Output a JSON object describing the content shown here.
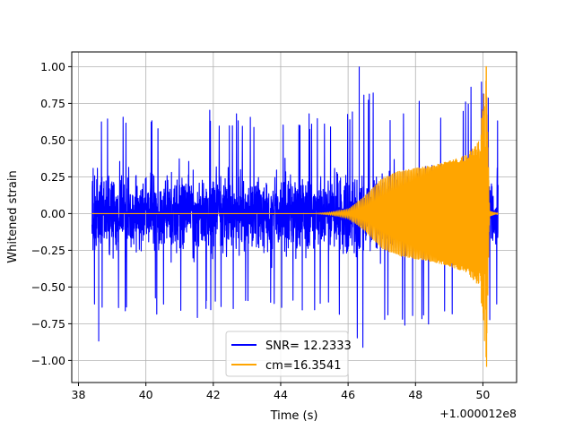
{
  "chart_data": {
    "type": "line",
    "title": "",
    "xlabel": "Time (s)",
    "ylabel": "Whitened strain",
    "x_offset_label": "+1.000012e8",
    "xlim": [
      37.8,
      51.0
    ],
    "ylim": [
      -1.15,
      1.1
    ],
    "xticks": [
      38,
      40,
      42,
      44,
      46,
      48,
      50
    ],
    "yticks": [
      -1.0,
      -0.75,
      -0.5,
      -0.25,
      0.0,
      0.25,
      0.5,
      0.75,
      1.0
    ],
    "xtick_labels": [
      "38",
      "40",
      "42",
      "44",
      "46",
      "48",
      "50"
    ],
    "ytick_labels": [
      "−1.00",
      "−0.75",
      "−0.50",
      "−0.25",
      "0.00",
      "0.25",
      "0.50",
      "0.75",
      "1.00"
    ],
    "grid": true,
    "legend_position": "lower-center",
    "series": [
      {
        "name": "SNR= 12.2333",
        "color": "#0000ff",
        "kind": "noisy-whitened-strain",
        "x_range": [
          38.4,
          50.45
        ],
        "typical_amplitude": 0.45,
        "peak_max": 1.0,
        "peak_min": -0.87,
        "envelope": [
          [
            38.4,
            0.63
          ],
          [
            40.0,
            0.69
          ],
          [
            42.0,
            0.72
          ],
          [
            44.0,
            0.67
          ],
          [
            46.0,
            0.72
          ],
          [
            46.3,
            1.0
          ],
          [
            47.0,
            0.75
          ],
          [
            48.0,
            0.82
          ],
          [
            49.0,
            0.78
          ],
          [
            49.5,
            0.86
          ],
          [
            50.0,
            0.97
          ],
          [
            50.45,
            0.62
          ]
        ]
      },
      {
        "name": "cm=16.3541",
        "color": "#ffa500",
        "kind": "chirp-template",
        "x_range": [
          38.4,
          50.45
        ],
        "merger_time": 50.1,
        "peak_max": 1.0,
        "peak_min": -1.04,
        "envelope": [
          [
            38.4,
            0.0
          ],
          [
            45.0,
            0.0
          ],
          [
            45.5,
            0.01
          ],
          [
            46.0,
            0.03
          ],
          [
            46.5,
            0.12
          ],
          [
            47.0,
            0.24
          ],
          [
            47.5,
            0.29
          ],
          [
            48.0,
            0.31
          ],
          [
            48.5,
            0.33
          ],
          [
            49.0,
            0.36
          ],
          [
            49.5,
            0.4
          ],
          [
            49.9,
            0.5
          ],
          [
            50.1,
            1.0
          ],
          [
            50.2,
            0.02
          ],
          [
            50.45,
            0.0
          ]
        ]
      }
    ]
  }
}
